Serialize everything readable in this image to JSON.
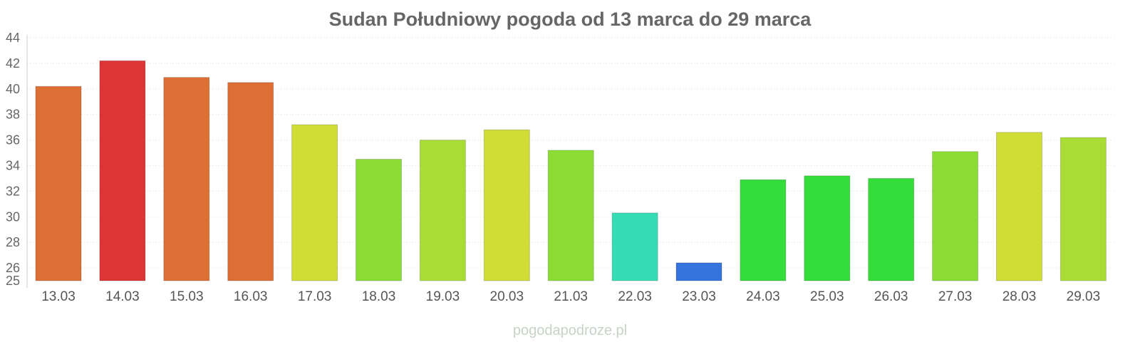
{
  "chart_data": {
    "type": "bar",
    "title": "Sudan Południowy pogoda od 13 marca do 29 marca",
    "categories": [
      "13.03",
      "14.03",
      "15.03",
      "16.03",
      "17.03",
      "18.03",
      "19.03",
      "20.03",
      "21.03",
      "22.03",
      "23.03",
      "24.03",
      "25.03",
      "26.03",
      "27.03",
      "28.03",
      "29.03"
    ],
    "values": [
      40.2,
      42.2,
      40.9,
      40.5,
      37.2,
      34.5,
      36.0,
      36.8,
      35.2,
      30.3,
      26.4,
      32.9,
      33.2,
      33.0,
      35.1,
      36.6,
      36.2
    ],
    "colors": [
      "#dd6f35",
      "#dd3535",
      "#dd6f35",
      "#dd6f35",
      "#cfdd35",
      "#8bdd35",
      "#a9dd35",
      "#cfdd35",
      "#8bdd35",
      "#35ddb4",
      "#3574dd",
      "#35dd3a",
      "#35dd3a",
      "#35dd3a",
      "#8bdd35",
      "#cfdd35",
      "#a9dd35"
    ],
    "yticks": [
      "25",
      "26",
      "28",
      "30",
      "32",
      "34",
      "36",
      "38",
      "40",
      "42",
      "44"
    ],
    "ylim": [
      25,
      44
    ],
    "xlabel": "",
    "ylabel": "",
    "grid": true
  },
  "source": "pogodapodroze.pl"
}
